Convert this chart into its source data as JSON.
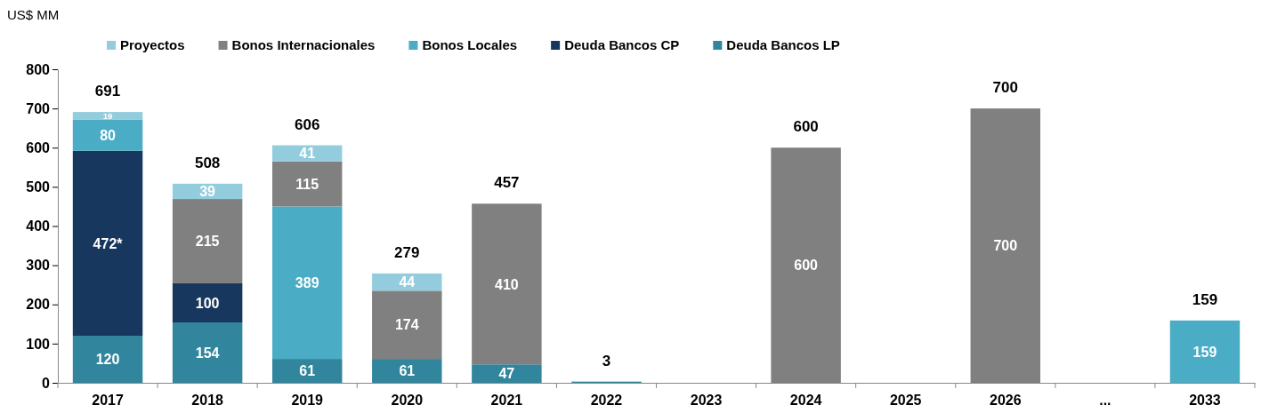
{
  "chart_data": {
    "type": "bar",
    "stacked": true,
    "ylabel": "US$ MM",
    "legend": "top",
    "grid": false,
    "categories": [
      "2017",
      "2018",
      "2019",
      "2020",
      "2021",
      "2022",
      "2023",
      "2024",
      "2025",
      "2026",
      "...",
      "2033"
    ],
    "ylim": [
      0,
      800
    ],
    "yticks": [
      0,
      100,
      200,
      300,
      400,
      500,
      600,
      700,
      800
    ],
    "series": [
      {
        "name": "Deuda Bancos LP",
        "color": "#31859c",
        "values": [
          120,
          154,
          61,
          61,
          47,
          3,
          null,
          null,
          null,
          null,
          null,
          null
        ],
        "value_labels": [
          "120",
          "154",
          "61",
          "61",
          "47",
          null,
          null,
          null,
          null,
          null,
          null,
          null
        ]
      },
      {
        "name": "Deuda Bancos CP",
        "color": "#17375e",
        "values": [
          472,
          100,
          null,
          null,
          null,
          null,
          null,
          null,
          null,
          null,
          null,
          null
        ],
        "value_labels": [
          "472*",
          "100",
          null,
          null,
          null,
          null,
          null,
          null,
          null,
          null,
          null,
          null
        ]
      },
      {
        "name": "Bonos Locales",
        "color": "#4bacc6",
        "values": [
          80,
          null,
          389,
          null,
          null,
          null,
          null,
          null,
          null,
          null,
          null,
          159
        ],
        "value_labels": [
          "80",
          null,
          "389",
          null,
          null,
          null,
          null,
          null,
          null,
          null,
          null,
          "159"
        ]
      },
      {
        "name": "Bonos Internacionales",
        "color": "#808080",
        "values": [
          null,
          215,
          115,
          174,
          410,
          null,
          null,
          600,
          null,
          700,
          null,
          null
        ],
        "value_labels": [
          null,
          "215",
          "115",
          "174",
          "410",
          null,
          null,
          "600",
          null,
          "700",
          null,
          null
        ]
      },
      {
        "name": "Proyectos",
        "color": "#93cddd",
        "values": [
          19,
          39,
          41,
          44,
          null,
          null,
          null,
          null,
          null,
          null,
          null,
          null
        ],
        "value_labels": [
          "19",
          "39",
          "41",
          "44",
          null,
          null,
          null,
          null,
          null,
          null,
          null,
          null
        ]
      }
    ],
    "totals": [
      "691",
      "508",
      "606",
      "279",
      "457",
      "3",
      null,
      "600",
      null,
      "700",
      null,
      "159"
    ]
  }
}
